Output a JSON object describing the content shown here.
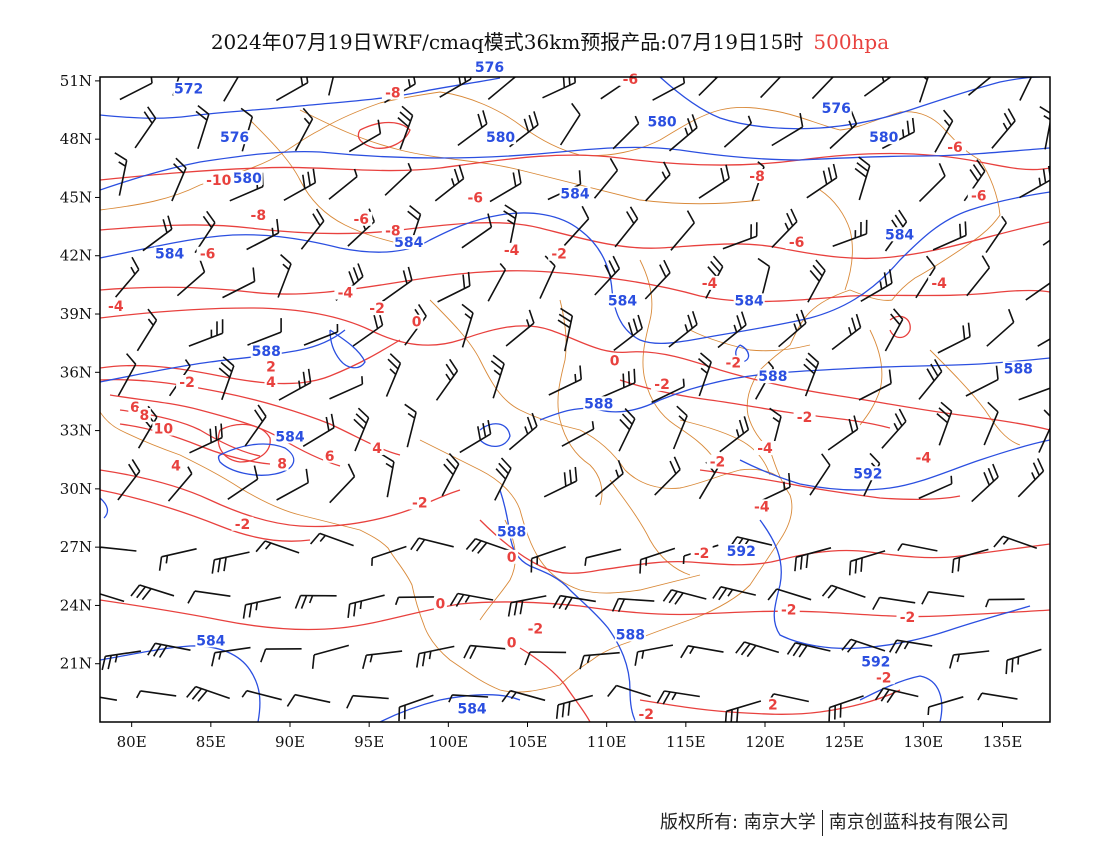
{
  "title": {
    "main": "2024年07月19日WRF/cmaq模式36km预报产品:07月19日15时",
    "level": "500hpa"
  },
  "colors": {
    "height_contour": "#2b4fe0",
    "temperature_contour": "#e8413e",
    "border": "#d98a3a",
    "wind_barb": "#111111",
    "frame": "#000000"
  },
  "axes": {
    "lon_labels": [
      "80E",
      "85E",
      "90E",
      "95E",
      "100E",
      "105E",
      "110E",
      "115E",
      "120E",
      "125E",
      "130E",
      "135E"
    ],
    "lat_labels": [
      "51N",
      "48N",
      "45N",
      "42N",
      "39N",
      "36N",
      "33N",
      "30N",
      "27N",
      "24N",
      "21N"
    ]
  },
  "height_labels": [
    {
      "text": "576",
      "lon": 102.6,
      "lat": 51.6
    },
    {
      "text": "572",
      "lon": 83.6,
      "lat": 50.5
    },
    {
      "text": "576",
      "lon": 86.5,
      "lat": 48.0
    },
    {
      "text": "580",
      "lon": 87.3,
      "lat": 45.9
    },
    {
      "text": "580",
      "lon": 103.3,
      "lat": 48.0
    },
    {
      "text": "580",
      "lon": 113.5,
      "lat": 48.8
    },
    {
      "text": "576",
      "lon": 124.5,
      "lat": 49.5
    },
    {
      "text": "580",
      "lon": 127.5,
      "lat": 48.0
    },
    {
      "text": "584",
      "lon": 108.0,
      "lat": 45.1
    },
    {
      "text": "584",
      "lon": 82.4,
      "lat": 42.0
    },
    {
      "text": "584",
      "lon": 97.5,
      "lat": 42.6
    },
    {
      "text": "584",
      "lon": 128.5,
      "lat": 43.0
    },
    {
      "text": "584",
      "lon": 111.0,
      "lat": 39.6
    },
    {
      "text": "584",
      "lon": 119.0,
      "lat": 39.6
    },
    {
      "text": "588",
      "lon": 88.5,
      "lat": 37.0
    },
    {
      "text": "588",
      "lon": 120.5,
      "lat": 35.7
    },
    {
      "text": "588",
      "lon": 136.0,
      "lat": 36.1
    },
    {
      "text": "588",
      "lon": 109.5,
      "lat": 34.3
    },
    {
      "text": "584",
      "lon": 90.0,
      "lat": 32.6
    },
    {
      "text": "592",
      "lon": 126.5,
      "lat": 30.7
    },
    {
      "text": "588",
      "lon": 104.0,
      "lat": 27.7
    },
    {
      "text": "592",
      "lon": 118.5,
      "lat": 26.7
    },
    {
      "text": "584",
      "lon": 85.0,
      "lat": 22.1
    },
    {
      "text": "588",
      "lon": 111.5,
      "lat": 22.4
    },
    {
      "text": "584",
      "lon": 101.5,
      "lat": 18.6
    },
    {
      "text": "592",
      "lon": 127.0,
      "lat": 21.0
    }
  ],
  "temperature_labels": [
    {
      "text": "-6",
      "lon": 111.5,
      "lat": 51.0
    },
    {
      "text": "-8",
      "lon": 96.5,
      "lat": 50.3
    },
    {
      "text": "-10",
      "lon": 85.5,
      "lat": 45.8
    },
    {
      "text": "-8",
      "lon": 88.0,
      "lat": 44.0
    },
    {
      "text": "-6",
      "lon": 101.7,
      "lat": 44.9
    },
    {
      "text": "-8",
      "lon": 119.5,
      "lat": 46.0
    },
    {
      "text": "-6",
      "lon": 132.0,
      "lat": 47.5
    },
    {
      "text": "-6",
      "lon": 133.5,
      "lat": 45.0
    },
    {
      "text": "-6",
      "lon": 94.5,
      "lat": 43.8
    },
    {
      "text": "-8",
      "lon": 96.5,
      "lat": 43.2
    },
    {
      "text": "-6",
      "lon": 84.8,
      "lat": 42.0
    },
    {
      "text": "-2",
      "lon": 107.0,
      "lat": 42.0
    },
    {
      "text": "-4",
      "lon": 104.0,
      "lat": 42.2
    },
    {
      "text": "-6",
      "lon": 122.0,
      "lat": 42.6
    },
    {
      "text": "-4",
      "lon": 79.0,
      "lat": 39.3
    },
    {
      "text": "-4",
      "lon": 93.5,
      "lat": 40.0
    },
    {
      "text": "-2",
      "lon": 95.5,
      "lat": 39.2
    },
    {
      "text": "-4",
      "lon": 116.5,
      "lat": 40.5
    },
    {
      "text": "-4",
      "lon": 131.0,
      "lat": 40.5
    },
    {
      "text": "0",
      "lon": 98.0,
      "lat": 38.5
    },
    {
      "text": "0",
      "lon": 110.5,
      "lat": 36.5
    },
    {
      "text": "-2",
      "lon": 118.0,
      "lat": 36.4
    },
    {
      "text": "-2",
      "lon": 83.5,
      "lat": 35.4
    },
    {
      "text": "2",
      "lon": 88.8,
      "lat": 36.2
    },
    {
      "text": "4",
      "lon": 88.8,
      "lat": 35.4
    },
    {
      "text": "6",
      "lon": 80.2,
      "lat": 34.1
    },
    {
      "text": "8",
      "lon": 80.8,
      "lat": 33.7
    },
    {
      "text": "10",
      "lon": 82.0,
      "lat": 33.0
    },
    {
      "text": "-2",
      "lon": 113.5,
      "lat": 35.3
    },
    {
      "text": "-2",
      "lon": 122.5,
      "lat": 33.6
    },
    {
      "text": "-4",
      "lon": 120.0,
      "lat": 32.0
    },
    {
      "text": "8",
      "lon": 89.5,
      "lat": 31.2
    },
    {
      "text": "6",
      "lon": 92.5,
      "lat": 31.6
    },
    {
      "text": "4",
      "lon": 95.5,
      "lat": 32.0
    },
    {
      "text": "4",
      "lon": 82.8,
      "lat": 31.1
    },
    {
      "text": "-2",
      "lon": 117.0,
      "lat": 31.3
    },
    {
      "text": "-4",
      "lon": 130.0,
      "lat": 31.5
    },
    {
      "text": "-2",
      "lon": 98.2,
      "lat": 29.2
    },
    {
      "text": "-2",
      "lon": 87.0,
      "lat": 28.1
    },
    {
      "text": "-4",
      "lon": 119.8,
      "lat": 29.0
    },
    {
      "text": "0",
      "lon": 104.0,
      "lat": 26.4
    },
    {
      "text": "-2",
      "lon": 116.0,
      "lat": 26.6
    },
    {
      "text": "0",
      "lon": 99.5,
      "lat": 24.0
    },
    {
      "text": "-2",
      "lon": 105.5,
      "lat": 22.7
    },
    {
      "text": "0",
      "lon": 104.0,
      "lat": 22.0
    },
    {
      "text": "-2",
      "lon": 121.5,
      "lat": 23.7
    },
    {
      "text": "-2",
      "lon": 129.0,
      "lat": 23.3
    },
    {
      "text": "-2",
      "lon": 127.5,
      "lat": 20.2
    },
    {
      "text": "-2",
      "lon": 112.5,
      "lat": 18.3
    },
    {
      "text": "2",
      "lon": 120.5,
      "lat": 18.8
    }
  ],
  "footer": {
    "copyright": "版权所有: 南京大学",
    "company": "南京创蓝科技有限公司"
  }
}
